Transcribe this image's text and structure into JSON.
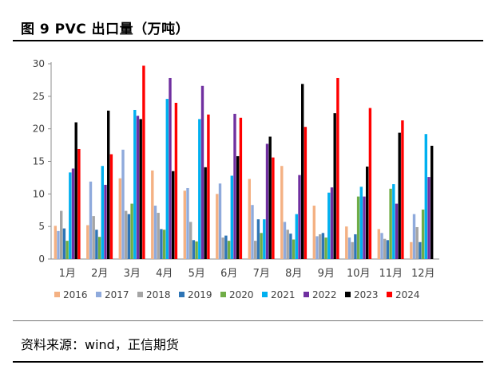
{
  "figure": {
    "title": "图 9   PVC 出口量（万吨）",
    "source": "资料来源：wind，正信期货"
  },
  "chart_data": {
    "type": "bar",
    "title": "",
    "xlabel": "",
    "ylabel": "",
    "ylim": [
      0,
      30
    ],
    "yticks": [
      0,
      5,
      10,
      15,
      20,
      25,
      30
    ],
    "grid": false,
    "legend_position": "bottom",
    "categories": [
      "1月",
      "2月",
      "3月",
      "4月",
      "5月",
      "6月",
      "7月",
      "8月",
      "9月",
      "10月",
      "11月",
      "12月"
    ],
    "series": [
      {
        "name": "2016",
        "color": "#F4B183",
        "values": [
          5.1,
          5.2,
          12.4,
          13.6,
          10.5,
          10.0,
          12.3,
          14.3,
          8.2,
          5.0,
          4.6,
          2.6
        ]
      },
      {
        "name": "2017",
        "color": "#8FAADC",
        "values": [
          4.3,
          11.9,
          16.8,
          8.2,
          10.9,
          11.6,
          8.3,
          5.7,
          3.5,
          3.3,
          4.0,
          6.9
        ]
      },
      {
        "name": "2018",
        "color": "#A5A5A5",
        "values": [
          7.4,
          6.6,
          7.4,
          7.1,
          5.7,
          3.3,
          2.8,
          4.5,
          3.8,
          2.6,
          3.1,
          4.9
        ]
      },
      {
        "name": "2019",
        "color": "#2E75B6",
        "values": [
          4.7,
          4.5,
          6.9,
          4.6,
          2.9,
          3.6,
          6.1,
          3.9,
          4.0,
          3.8,
          2.9,
          2.6
        ]
      },
      {
        "name": "2020",
        "color": "#70AD47",
        "values": [
          2.8,
          3.4,
          8.5,
          4.5,
          2.7,
          2.8,
          4.0,
          3.0,
          3.3,
          9.6,
          10.8,
          7.6
        ]
      },
      {
        "name": "2021",
        "color": "#00B0F0",
        "values": [
          13.3,
          14.3,
          22.9,
          24.6,
          21.5,
          12.8,
          6.1,
          6.9,
          10.2,
          11.1,
          11.5,
          19.2
        ]
      },
      {
        "name": "2022",
        "color": "#7030A0",
        "values": [
          13.9,
          11.4,
          22.0,
          27.8,
          26.6,
          22.3,
          17.7,
          12.9,
          11.0,
          9.6,
          8.5,
          12.6
        ]
      },
      {
        "name": "2023",
        "color": "#000000",
        "values": [
          21.0,
          22.8,
          21.5,
          13.5,
          14.1,
          15.8,
          18.8,
          26.9,
          22.4,
          14.2,
          19.4,
          17.4
        ]
      },
      {
        "name": "2024",
        "color": "#FF0000",
        "values": [
          16.9,
          16.1,
          29.7,
          24.0,
          22.2,
          21.7,
          15.6,
          20.3,
          27.8,
          23.2,
          21.3,
          null
        ]
      }
    ]
  }
}
